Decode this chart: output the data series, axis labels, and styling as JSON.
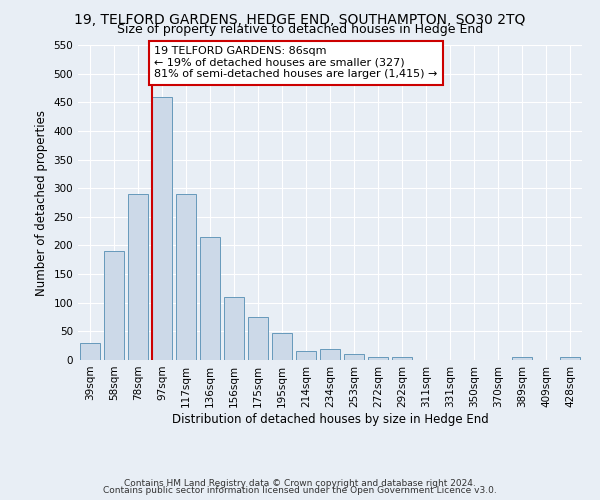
{
  "title": "19, TELFORD GARDENS, HEDGE END, SOUTHAMPTON, SO30 2TQ",
  "subtitle": "Size of property relative to detached houses in Hedge End",
  "xlabel": "Distribution of detached houses by size in Hedge End",
  "ylabel": "Number of detached properties",
  "categories": [
    "39sqm",
    "58sqm",
    "78sqm",
    "97sqm",
    "117sqm",
    "136sqm",
    "156sqm",
    "175sqm",
    "195sqm",
    "214sqm",
    "234sqm",
    "253sqm",
    "272sqm",
    "292sqm",
    "311sqm",
    "331sqm",
    "350sqm",
    "370sqm",
    "389sqm",
    "409sqm",
    "428sqm"
  ],
  "values": [
    30,
    190,
    290,
    460,
    290,
    215,
    110,
    75,
    48,
    15,
    20,
    10,
    5,
    5,
    0,
    0,
    0,
    0,
    5,
    0,
    5
  ],
  "bar_color": "#ccd9e8",
  "bar_edge_color": "#6699bb",
  "ylim": [
    0,
    550
  ],
  "yticks": [
    0,
    50,
    100,
    150,
    200,
    250,
    300,
    350,
    400,
    450,
    500,
    550
  ],
  "property_bin_index": 3,
  "annotation_text": "19 TELFORD GARDENS: 86sqm\n← 19% of detached houses are smaller (327)\n81% of semi-detached houses are larger (1,415) →",
  "annotation_box_color": "#ffffff",
  "annotation_box_edge": "#cc0000",
  "red_line_color": "#cc0000",
  "footer_line1": "Contains HM Land Registry data © Crown copyright and database right 2024.",
  "footer_line2": "Contains public sector information licensed under the Open Government Licence v3.0.",
  "background_color": "#e8eef5",
  "plot_background": "#e8eef5",
  "grid_color": "#ffffff",
  "title_fontsize": 10,
  "subtitle_fontsize": 9,
  "axis_label_fontsize": 8.5,
  "tick_fontsize": 7.5,
  "annotation_fontsize": 8,
  "footer_fontsize": 6.5
}
